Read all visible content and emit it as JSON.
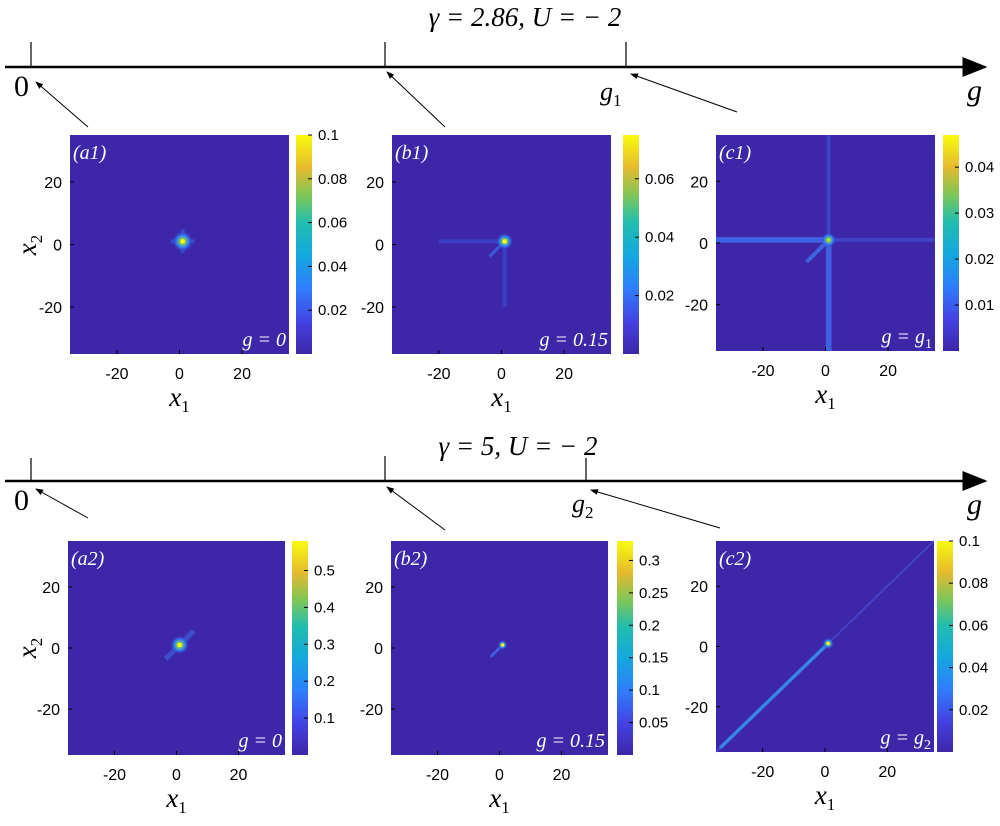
{
  "rows": [
    {
      "title": "γ = 2.86,   U = − 2",
      "axis": {
        "origin_label": "0",
        "critical_label_main": "g",
        "critical_label_sub": "1",
        "arrow_label": "g"
      },
      "panels": [
        {
          "label": "(a1)",
          "g_label": "g = 0",
          "colorbar_ticks": [
            "0.1",
            "0.08",
            "0.06",
            "0.04",
            "0.02"
          ],
          "colorbar_max": 0.1,
          "ylabel_shown": true
        },
        {
          "label": "(b1)",
          "g_label": "g = 0.15",
          "colorbar_ticks": [
            "0.06",
            "0.04",
            "0.02"
          ],
          "colorbar_max": 0.075,
          "ylabel_shown": false
        },
        {
          "label": "(c1)",
          "g_label": "g = g",
          "g_label_sub": "1",
          "colorbar_ticks": [
            "0.04",
            "0.03",
            "0.02",
            "0.01"
          ],
          "colorbar_max": 0.047,
          "ylabel_shown": false
        }
      ]
    },
    {
      "title": "γ = 5,   U = − 2",
      "axis": {
        "origin_label": "0",
        "critical_label_main": "g",
        "critical_label_sub": "2",
        "arrow_label": "g"
      },
      "panels": [
        {
          "label": "(a2)",
          "g_label": "g = 0",
          "colorbar_ticks": [
            "0.5",
            "0.4",
            "0.3",
            "0.2",
            "0.1"
          ],
          "colorbar_max": 0.58,
          "ylabel_shown": true
        },
        {
          "label": "(b2)",
          "g_label": "g = 0.15",
          "colorbar_ticks": [
            "0.3",
            "0.25",
            "0.2",
            "0.15",
            "0.1",
            "0.05"
          ],
          "colorbar_max": 0.33,
          "ylabel_shown": false
        },
        {
          "label": "(c2)",
          "g_label": "g = g",
          "g_label_sub": "2",
          "colorbar_ticks": [
            "0.1",
            "0.08",
            "0.06",
            "0.04",
            "0.02"
          ],
          "colorbar_max": 0.1,
          "ylabel_shown": false
        }
      ]
    }
  ],
  "chart_data": {
    "type": "heatmap",
    "xlabel": "x1",
    "ylabel": "x2",
    "x_ticks": [
      "-20",
      "0",
      "20"
    ],
    "y_ticks": [
      "20",
      "0",
      "-20"
    ],
    "xlim": [
      -35,
      35
    ],
    "ylim": [
      -35,
      35
    ],
    "colormap": "parula",
    "colors": {
      "background": "#3e26a8",
      "peak": "#f9fb0e",
      "line": "#000000"
    }
  }
}
